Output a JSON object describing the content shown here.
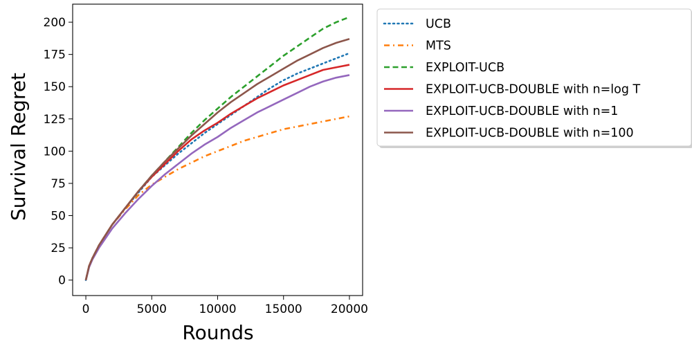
{
  "chart_data": {
    "type": "line",
    "xlabel": "Rounds",
    "ylabel": "Survival Regret",
    "xlim": [
      -1000,
      21000
    ],
    "ylim": [
      -12,
      214
    ],
    "xticks": [
      0,
      5000,
      10000,
      15000,
      20000
    ],
    "yticks": [
      0,
      25,
      50,
      75,
      100,
      125,
      150,
      175,
      200
    ],
    "grid": false,
    "legend_position": "outside-right-top",
    "x": [
      0,
      250,
      500,
      1000,
      2000,
      3000,
      4000,
      5000,
      6000,
      7000,
      8000,
      9000,
      10000,
      11000,
      12000,
      13000,
      14000,
      15000,
      16000,
      17000,
      18000,
      19000,
      20000
    ],
    "series": [
      {
        "name": "UCB",
        "color": "#1f77b4",
        "style": "dotted",
        "values": [
          0,
          11,
          17,
          27,
          43,
          56,
          68,
          80,
          89,
          98,
          106,
          114,
          121,
          128,
          135,
          142,
          149,
          155,
          160,
          164,
          168,
          172,
          176
        ]
      },
      {
        "name": "MTS",
        "color": "#ff7f0e",
        "style": "dashdot",
        "values": [
          0,
          11,
          17,
          27,
          43,
          55,
          66,
          74,
          80,
          86,
          91,
          96,
          100,
          104,
          108,
          111,
          114,
          117,
          119,
          121,
          123,
          125,
          127
        ]
      },
      {
        "name": "EXPLOIT-UCB",
        "color": "#2ca02c",
        "style": "dashed",
        "values": [
          0,
          11,
          17,
          27,
          43,
          56,
          69,
          81,
          92,
          103,
          114,
          124,
          133,
          142,
          150,
          158,
          166,
          174,
          181,
          188,
          195,
          200,
          204
        ]
      },
      {
        "name": "EXPLOIT-UCB-DOUBLE with n=log T",
        "color": "#d62728",
        "style": "solid",
        "values": [
          0,
          11,
          17,
          27,
          43,
          56,
          69,
          80,
          90,
          100,
          109,
          116,
          122,
          129,
          135,
          141,
          146,
          151,
          155,
          159,
          163,
          165,
          167
        ]
      },
      {
        "name": "EXPLOIT-UCB-DOUBLE with n=1",
        "color": "#9467bd",
        "style": "solid",
        "values": [
          0,
          10,
          16,
          25,
          40,
          52,
          63,
          73,
          82,
          90,
          98,
          105,
          111,
          118,
          124,
          130,
          135,
          140,
          145,
          150,
          154,
          157,
          159
        ]
      },
      {
        "name": "EXPLOIT-UCB-DOUBLE with n=100",
        "color": "#8c564b",
        "style": "solid",
        "values": [
          0,
          11,
          17,
          27,
          43,
          56,
          69,
          81,
          92,
          102,
          112,
          121,
          130,
          138,
          145,
          152,
          158,
          164,
          170,
          175,
          180,
          184,
          187
        ]
      }
    ]
  }
}
